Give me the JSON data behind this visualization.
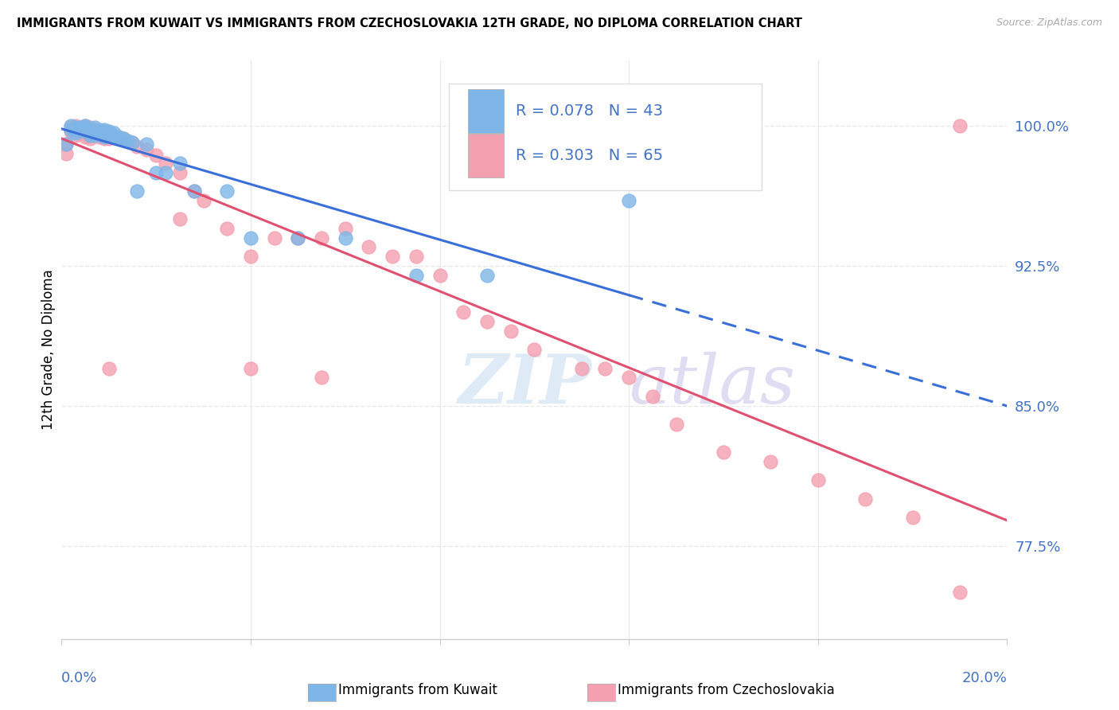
{
  "title": "IMMIGRANTS FROM KUWAIT VS IMMIGRANTS FROM CZECHOSLOVAKIA 12TH GRADE, NO DIPLOMA CORRELATION CHART",
  "source": "Source: ZipAtlas.com",
  "ylabel": "12th Grade, No Diploma",
  "legend_kuwait": "Immigrants from Kuwait",
  "legend_czech": "Immigrants from Czechoslovakia",
  "R_kuwait": 0.078,
  "N_kuwait": 43,
  "R_czech": 0.303,
  "N_czech": 65,
  "color_kuwait": "#7EB6E8",
  "color_czech": "#F4A0B0",
  "color_trendline_kuwait": "#3A6FD8",
  "color_trendline_czech": "#E05070",
  "color_text_blue": "#4472C4",
  "background_color": "#FFFFFF",
  "watermark_zip": "ZIP",
  "watermark_atlas": "atlas",
  "watermark_color_zip": "#C8DFF0",
  "watermark_color_atlas": "#C8C0E8",
  "xlim": [
    0.0,
    0.2
  ],
  "ylim": [
    0.725,
    1.035
  ],
  "ytick_vals": [
    1.0,
    0.925,
    0.85,
    0.775
  ],
  "ytick_labels": [
    "100.0%",
    "92.5%",
    "85.0%",
    "77.5%"
  ],
  "grid_color": "#E8E8E8",
  "kuwait_x": [
    0.001,
    0.002,
    0.002,
    0.003,
    0.003,
    0.003,
    0.004,
    0.004,
    0.005,
    0.005,
    0.005,
    0.006,
    0.006,
    0.006,
    0.007,
    0.007,
    0.007,
    0.008,
    0.008,
    0.009,
    0.009,
    0.009,
    0.01,
    0.01,
    0.011,
    0.011,
    0.012,
    0.013,
    0.014,
    0.015,
    0.016,
    0.018,
    0.02,
    0.022,
    0.025,
    0.028,
    0.035,
    0.04,
    0.05,
    0.06,
    0.075,
    0.09,
    0.12
  ],
  "kuwait_y": [
    0.99,
    1.0,
    0.998,
    0.999,
    0.998,
    0.996,
    0.999,
    0.998,
    1.0,
    0.999,
    0.997,
    0.998,
    0.997,
    0.995,
    0.999,
    0.997,
    0.995,
    0.998,
    0.996,
    0.998,
    0.996,
    0.994,
    0.997,
    0.995,
    0.996,
    0.994,
    0.994,
    0.993,
    0.992,
    0.991,
    0.965,
    0.99,
    0.975,
    0.975,
    0.98,
    0.965,
    0.965,
    0.94,
    0.94,
    0.94,
    0.92,
    0.92,
    0.96
  ],
  "czech_x": [
    0.001,
    0.001,
    0.002,
    0.002,
    0.003,
    0.003,
    0.003,
    0.004,
    0.004,
    0.005,
    0.005,
    0.005,
    0.006,
    0.006,
    0.006,
    0.007,
    0.007,
    0.008,
    0.008,
    0.009,
    0.009,
    0.01,
    0.01,
    0.011,
    0.012,
    0.013,
    0.014,
    0.015,
    0.016,
    0.018,
    0.02,
    0.022,
    0.025,
    0.028,
    0.03,
    0.035,
    0.04,
    0.045,
    0.05,
    0.055,
    0.06,
    0.065,
    0.07,
    0.075,
    0.08,
    0.085,
    0.09,
    0.095,
    0.1,
    0.11,
    0.115,
    0.12,
    0.125,
    0.13,
    0.14,
    0.15,
    0.16,
    0.17,
    0.18,
    0.19,
    0.01,
    0.025,
    0.04,
    0.055,
    0.19
  ],
  "czech_y": [
    0.99,
    0.985,
    0.999,
    0.997,
    1.0,
    0.998,
    0.995,
    0.999,
    0.996,
    1.0,
    0.998,
    0.994,
    0.999,
    0.996,
    0.993,
    0.998,
    0.995,
    0.997,
    0.994,
    0.997,
    0.993,
    0.996,
    0.993,
    0.995,
    0.994,
    0.993,
    0.992,
    0.991,
    0.989,
    0.987,
    0.984,
    0.98,
    0.975,
    0.965,
    0.96,
    0.945,
    0.93,
    0.94,
    0.94,
    0.94,
    0.945,
    0.935,
    0.93,
    0.93,
    0.92,
    0.9,
    0.895,
    0.89,
    0.88,
    0.87,
    0.87,
    0.865,
    0.855,
    0.84,
    0.825,
    0.82,
    0.81,
    0.8,
    0.79,
    1.0,
    0.87,
    0.95,
    0.87,
    0.865,
    0.75
  ]
}
